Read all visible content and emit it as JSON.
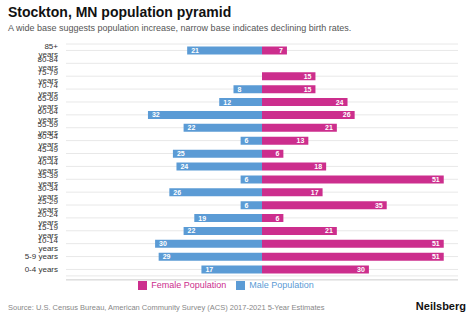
{
  "chart_data": {
    "type": "bar",
    "orientation": "horizontal",
    "title": "Stockton, MN population pyramid",
    "subtitle": "A wide base suggests population increase, narrow base indicates declining birth rates.",
    "annotations": [
      "Source: U.S. Census Bureau, American Community Survey (ACS) 2017-2021 5-Year Estimates",
      "Neilsberg"
    ],
    "categories": [
      "0-4 years",
      "5-9 years",
      "10-14 years",
      "15-19 years",
      "20-24 years",
      "25-29 years",
      "30-34 years",
      "35-39 years",
      "40-44 years",
      "45-49 years",
      "50-54 years",
      "55-59 years",
      "60-64 years",
      "65-69 years",
      "70-74 years",
      "75-79 years",
      "80-84 years",
      "85+ years"
    ],
    "series": [
      {
        "name": "Male Population",
        "color": "#5B9BD5",
        "values": [
          17,
          29,
          30,
          22,
          19,
          6,
          26,
          6,
          24,
          25,
          6,
          22,
          32,
          12,
          8,
          0,
          0,
          21
        ]
      },
      {
        "name": "Female Population",
        "color": "#CC2E8D",
        "values": [
          30,
          51,
          51,
          21,
          6,
          35,
          17,
          51,
          18,
          6,
          13,
          21,
          26,
          24,
          15,
          15,
          0,
          7
        ]
      }
    ],
    "xlim": [
      -55,
      55
    ],
    "data_labels": true,
    "tick_labels": "y",
    "grid": true,
    "legend": "bottom"
  }
}
